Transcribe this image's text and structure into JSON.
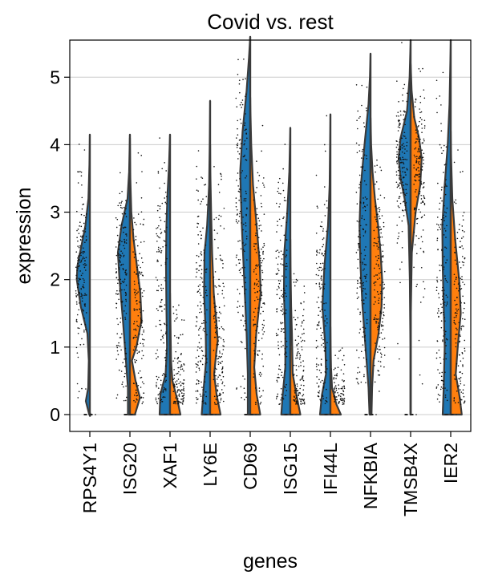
{
  "chart_data": {
    "type": "violin",
    "title": "Covid vs. rest",
    "xlabel": "genes",
    "ylabel": "expression",
    "ylim": [
      -0.25,
      5.55
    ],
    "yticks": [
      0,
      1,
      2,
      3,
      4,
      5
    ],
    "grid": "horizontal",
    "legend": "none",
    "split_colors": {
      "left": "#1f77b4",
      "right": "#ff7f0e"
    },
    "genes": [
      {
        "name": "RPS4Y1",
        "max": 4.15,
        "left": [
          [
            0,
            0.03
          ],
          [
            0.2,
            0.2
          ],
          [
            0.4,
            0.08
          ],
          [
            0.8,
            0.05
          ],
          [
            1.2,
            0.12
          ],
          [
            1.6,
            0.45
          ],
          [
            2.0,
            0.65
          ],
          [
            2.2,
            0.62
          ],
          [
            2.5,
            0.42
          ],
          [
            2.8,
            0.22
          ],
          [
            3.2,
            0.07
          ],
          [
            3.7,
            0.02
          ],
          [
            4.15,
            0
          ]
        ],
        "right": [
          [
            -0.02,
            0.015
          ],
          [
            0,
            0.03
          ],
          [
            0.02,
            0.015
          ]
        ]
      },
      {
        "name": "ISG20",
        "max": 4.15,
        "left": [
          [
            0,
            0.1
          ],
          [
            0.4,
            0.1
          ],
          [
            0.8,
            0.2
          ],
          [
            1.4,
            0.35
          ],
          [
            2.0,
            0.52
          ],
          [
            2.4,
            0.6
          ],
          [
            2.8,
            0.42
          ],
          [
            3.2,
            0.12
          ],
          [
            3.6,
            0.04
          ],
          [
            4.15,
            0
          ]
        ],
        "right": [
          [
            0,
            0.25
          ],
          [
            0.25,
            0.5
          ],
          [
            0.5,
            0.28
          ],
          [
            0.8,
            0.1
          ],
          [
            1.0,
            0.32
          ],
          [
            1.4,
            0.58
          ],
          [
            1.8,
            0.52
          ],
          [
            2.2,
            0.35
          ],
          [
            2.6,
            0.18
          ],
          [
            3.0,
            0.07
          ],
          [
            3.5,
            0.02
          ],
          [
            4.1,
            0
          ]
        ]
      },
      {
        "name": "XAF1",
        "max": 4.15,
        "left": [
          [
            0,
            0.52
          ],
          [
            0.3,
            0.48
          ],
          [
            0.6,
            0.22
          ],
          [
            1.0,
            0.15
          ],
          [
            1.6,
            0.18
          ],
          [
            2.2,
            0.2
          ],
          [
            2.8,
            0.18
          ],
          [
            3.3,
            0.12
          ],
          [
            3.7,
            0.05
          ],
          [
            4.15,
            0
          ]
        ],
        "right": [
          [
            0,
            0.52
          ],
          [
            0.2,
            0.38
          ],
          [
            0.5,
            0.12
          ],
          [
            0.8,
            0.05
          ],
          [
            1.2,
            0.03
          ],
          [
            1.6,
            0.01
          ],
          [
            1.8,
            0
          ]
        ]
      },
      {
        "name": "LY6E",
        "max": 4.65,
        "left": [
          [
            0,
            0.42
          ],
          [
            0.4,
            0.32
          ],
          [
            0.8,
            0.2
          ],
          [
            1.2,
            0.22
          ],
          [
            1.8,
            0.3
          ],
          [
            2.4,
            0.28
          ],
          [
            2.8,
            0.15
          ],
          [
            3.4,
            0.05
          ],
          [
            4.0,
            0.02
          ],
          [
            4.65,
            0
          ]
        ],
        "right": [
          [
            0,
            0.52
          ],
          [
            0.3,
            0.32
          ],
          [
            0.6,
            0.2
          ],
          [
            0.9,
            0.3
          ],
          [
            1.1,
            0.38
          ],
          [
            1.4,
            0.3
          ],
          [
            1.8,
            0.18
          ],
          [
            2.4,
            0.1
          ],
          [
            3.0,
            0.05
          ],
          [
            3.6,
            0.01
          ],
          [
            4.0,
            0
          ]
        ]
      },
      {
        "name": "CD69",
        "max": 5.6,
        "left": [
          [
            0,
            0.12
          ],
          [
            0.6,
            0.12
          ],
          [
            1.2,
            0.18
          ],
          [
            2.0,
            0.3
          ],
          [
            2.8,
            0.42
          ],
          [
            3.6,
            0.5
          ],
          [
            4.2,
            0.38
          ],
          [
            4.8,
            0.18
          ],
          [
            5.3,
            0.06
          ],
          [
            5.6,
            0
          ]
        ],
        "right": [
          [
            0,
            0.5
          ],
          [
            0.3,
            0.32
          ],
          [
            0.7,
            0.2
          ],
          [
            1.2,
            0.3
          ],
          [
            1.8,
            0.52
          ],
          [
            2.2,
            0.48
          ],
          [
            2.8,
            0.32
          ],
          [
            3.4,
            0.14
          ],
          [
            4.0,
            0.05
          ],
          [
            4.5,
            0.01
          ],
          [
            4.7,
            0
          ]
        ]
      },
      {
        "name": "ISG15",
        "max": 4.25,
        "left": [
          [
            0,
            0.45
          ],
          [
            0.3,
            0.38
          ],
          [
            0.7,
            0.25
          ],
          [
            1.2,
            0.25
          ],
          [
            1.8,
            0.32
          ],
          [
            2.4,
            0.3
          ],
          [
            3.0,
            0.15
          ],
          [
            3.6,
            0.05
          ],
          [
            4.25,
            0
          ]
        ],
        "right": [
          [
            0,
            0.5
          ],
          [
            0.3,
            0.3
          ],
          [
            0.6,
            0.12
          ],
          [
            0.9,
            0.1
          ],
          [
            1.2,
            0.08
          ],
          [
            1.6,
            0.04
          ],
          [
            2.2,
            0.01
          ],
          [
            2.6,
            0
          ]
        ]
      },
      {
        "name": "IFI44L",
        "max": 4.45,
        "left": [
          [
            0,
            0.52
          ],
          [
            0.3,
            0.42
          ],
          [
            0.6,
            0.22
          ],
          [
            1.0,
            0.25
          ],
          [
            1.6,
            0.4
          ],
          [
            2.2,
            0.3
          ],
          [
            2.8,
            0.12
          ],
          [
            3.4,
            0.04
          ],
          [
            4.45,
            0
          ]
        ],
        "right": [
          [
            0,
            0.52
          ],
          [
            0.15,
            0.3
          ],
          [
            0.4,
            0.08
          ],
          [
            0.7,
            0.03
          ],
          [
            1.0,
            0.01
          ],
          [
            1.3,
            0
          ]
        ]
      },
      {
        "name": "NFKBIA",
        "max": 5.35,
        "left": [
          [
            0,
            0.05
          ],
          [
            0.4,
            0.1
          ],
          [
            1.0,
            0.25
          ],
          [
            1.6,
            0.4
          ],
          [
            2.2,
            0.5
          ],
          [
            2.8,
            0.55
          ],
          [
            3.4,
            0.48
          ],
          [
            4.0,
            0.3
          ],
          [
            4.6,
            0.1
          ],
          [
            5.0,
            0.03
          ],
          [
            5.35,
            0
          ]
        ],
        "right": [
          [
            0,
            0.05
          ],
          [
            0.4,
            0.08
          ],
          [
            0.8,
            0.15
          ],
          [
            1.2,
            0.4
          ],
          [
            1.6,
            0.55
          ],
          [
            2.0,
            0.58
          ],
          [
            2.4,
            0.5
          ],
          [
            2.8,
            0.38
          ],
          [
            3.2,
            0.22
          ],
          [
            3.6,
            0.1
          ],
          [
            4.0,
            0.03
          ],
          [
            4.4,
            0
          ]
        ]
      },
      {
        "name": "TMSB4X",
        "max": 5.55,
        "left": [
          [
            0,
            0.01
          ],
          [
            1.0,
            0.01
          ],
          [
            2.0,
            0.04
          ],
          [
            2.8,
            0.1
          ],
          [
            3.2,
            0.3
          ],
          [
            3.5,
            0.5
          ],
          [
            3.8,
            0.6
          ],
          [
            4.1,
            0.5
          ],
          [
            4.5,
            0.18
          ],
          [
            5.0,
            0.05
          ],
          [
            5.55,
            0
          ]
        ],
        "right": [
          [
            0,
            0.01
          ],
          [
            1.5,
            0.01
          ],
          [
            2.4,
            0.06
          ],
          [
            3.0,
            0.25
          ],
          [
            3.4,
            0.48
          ],
          [
            3.8,
            0.55
          ],
          [
            4.1,
            0.42
          ],
          [
            4.4,
            0.18
          ],
          [
            4.8,
            0.05
          ],
          [
            5.2,
            0
          ]
        ]
      },
      {
        "name": "IER2",
        "max": 5.55,
        "left": [
          [
            0,
            0.4
          ],
          [
            0.4,
            0.35
          ],
          [
            1.0,
            0.3
          ],
          [
            1.6,
            0.35
          ],
          [
            2.2,
            0.4
          ],
          [
            2.8,
            0.42
          ],
          [
            3.4,
            0.3
          ],
          [
            4.0,
            0.15
          ],
          [
            4.6,
            0.06
          ],
          [
            5.2,
            0.02
          ],
          [
            5.55,
            0
          ]
        ],
        "right": [
          [
            0,
            0.55
          ],
          [
            0.25,
            0.45
          ],
          [
            0.6,
            0.25
          ],
          [
            1.0,
            0.35
          ],
          [
            1.5,
            0.5
          ],
          [
            2.0,
            0.42
          ],
          [
            2.6,
            0.22
          ],
          [
            3.2,
            0.08
          ],
          [
            3.8,
            0.02
          ],
          [
            4.2,
            0
          ]
        ]
      }
    ]
  }
}
